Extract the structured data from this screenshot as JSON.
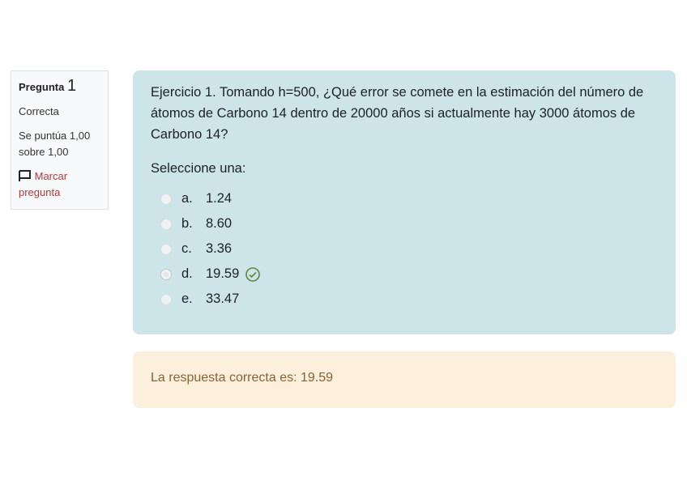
{
  "info": {
    "label": "Pregunta",
    "number": "1",
    "state": "Correcta",
    "grade": "Se puntúa 1,00 sobre 1,00",
    "flag_label": "Marcar pregunta"
  },
  "question": {
    "text": "Ejercicio 1. Tomando h=500, ¿Qué error se comete en la estimación del número de átomos de Carbono 14 dentro de 20000 años si actualmente hay 3000 átomos de Carbono 14?",
    "prompt": "Seleccione una:",
    "options": [
      {
        "letter": "a.",
        "value": "1.24"
      },
      {
        "letter": "b.",
        "value": "8.60"
      },
      {
        "letter": "c.",
        "value": "3.36"
      },
      {
        "letter": "d.",
        "value": "19.59",
        "selected": true,
        "correct": true
      },
      {
        "letter": "e.",
        "value": "33.47"
      }
    ]
  },
  "feedback": {
    "text": "La respuesta correcta es: 19.59"
  },
  "colors": {
    "question_bg": "#cde4e8",
    "feedback_bg": "#fcefdc",
    "correct": "#5a8a3a",
    "flag": "#b33a3a"
  }
}
